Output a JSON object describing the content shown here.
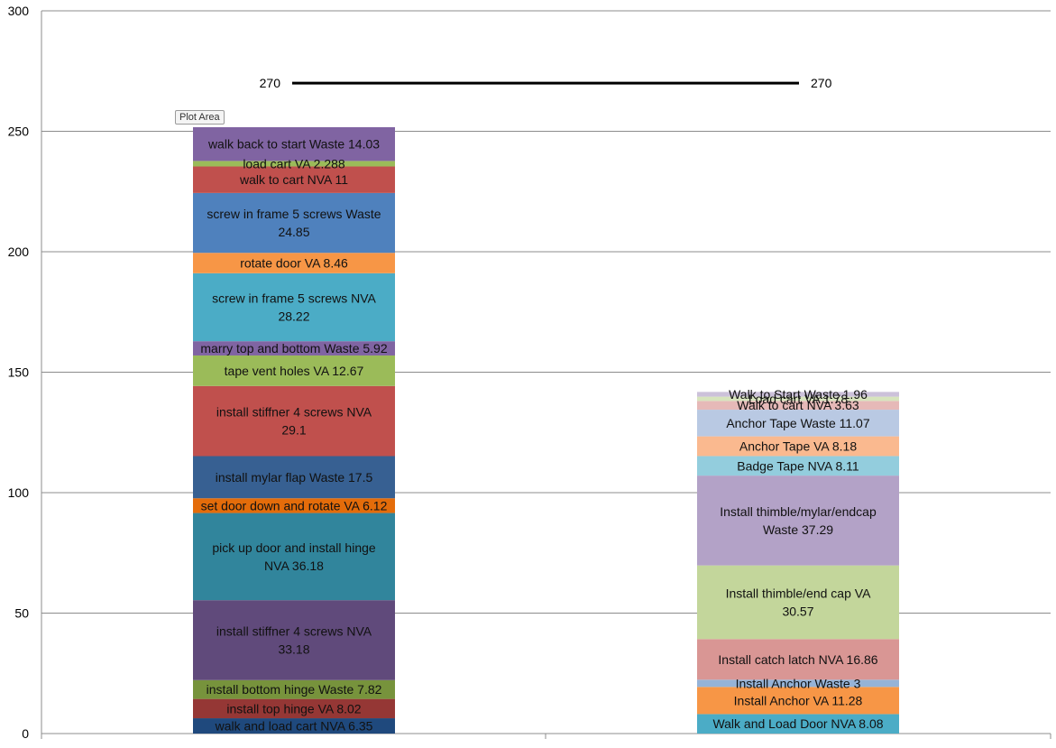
{
  "tooltip": "Plot Area",
  "chart_data": {
    "type": "bar",
    "stacked": true,
    "ylim": [
      0,
      300
    ],
    "yticks": [
      0,
      50,
      100,
      150,
      200,
      250,
      300
    ],
    "grid": true,
    "legend": "none",
    "reference_line": {
      "value": 270,
      "left_label": "270",
      "right_label": "270"
    },
    "colors": {
      "purple": "#8064a2",
      "green": "#9bbb59",
      "red": "#c0504d",
      "blue": "#4f81bd",
      "orange": "#f79646",
      "teal": "#4bacc6",
      "darkpurple": "#604a7b",
      "darkteal": "#31859c",
      "darkred": "#953735",
      "darkblue": "#1f497d",
      "darkgreen": "#77933c",
      "lightpurple": "#b3a2c7",
      "lightgreen": "#c3d69b",
      "lightred": "#d99694",
      "lightblue": "#95b3d7",
      "lightorange": "#fac090",
      "lightteal": "#93cddd",
      "palepurple": "#ccc1da",
      "palegreen": "#d7e4bd",
      "palered": "#e6b9b8"
    },
    "columns": [
      {
        "segments": [
          {
            "label": "walk and load cart NVA 6.35",
            "value": 6.35,
            "color": "#1f497d"
          },
          {
            "label": "install top hinge VA 8.02",
            "value": 8.02,
            "color": "#953735"
          },
          {
            "label": "install bottom hinge Waste 7.82",
            "value": 7.82,
            "color": "#77933c"
          },
          {
            "label": "install stiffner 4 screws NVA 33.18",
            "value": 33.18,
            "color": "#604a7b"
          },
          {
            "label": "pick up door and install hinge NVA 36.18",
            "value": 36.18,
            "color": "#31859c"
          },
          {
            "label": "set door down and rotate VA 6.12",
            "value": 6.12,
            "color": "#e46c0a"
          },
          {
            "label": "install mylar flap Waste 17.5",
            "value": 17.5,
            "color": "#376092"
          },
          {
            "label": "install stiffner 4 screws NVA 29.1",
            "value": 29.1,
            "color": "#c0504d"
          },
          {
            "label": "tape vent holes VA 12.67",
            "value": 12.67,
            "color": "#9bbb59"
          },
          {
            "label": "marry top and bottom Waste 5.92",
            "value": 5.92,
            "color": "#8064a2"
          },
          {
            "label": "screw in frame 5 screws NVA 28.22",
            "value": 28.22,
            "color": "#4bacc6"
          },
          {
            "label": "rotate door VA 8.46",
            "value": 8.46,
            "color": "#f79646"
          },
          {
            "label": "screw in frame 5 screws Waste 24.85",
            "value": 24.85,
            "color": "#4f81bd"
          },
          {
            "label": "walk to cart NVA 11",
            "value": 11,
            "color": "#c0504d"
          },
          {
            "label": "load cart VA 2.288",
            "value": 2.288,
            "color": "#9bbb59"
          },
          {
            "label": "walk back to start Waste 14.03",
            "value": 14.03,
            "color": "#8064a2"
          }
        ]
      },
      {
        "segments": [
          {
            "label": "Walk and Load Door NVA 8.08",
            "value": 8.08,
            "color": "#4bacc6"
          },
          {
            "label": "Install Anchor VA 11.28",
            "value": 11.28,
            "color": "#f79646"
          },
          {
            "label": "Install Anchor Waste 3",
            "value": 3,
            "color": "#95b3d7"
          },
          {
            "label": "Install catch latch NVA 16.86",
            "value": 16.86,
            "color": "#d99694"
          },
          {
            "label": "Install thimble/end cap VA 30.57",
            "value": 30.57,
            "color": "#c3d69b"
          },
          {
            "label": "Install thimble/mylar/endcap Waste 37.29",
            "value": 37.29,
            "color": "#b3a2c7"
          },
          {
            "label": "Badge Tape NVA 8.11",
            "value": 8.11,
            "color": "#93cddd"
          },
          {
            "label": "Anchor Tape VA 8.18",
            "value": 8.18,
            "color": "#fab98f"
          },
          {
            "label": "Anchor Tape Waste 11.07",
            "value": 11.07,
            "color": "#b9c9e3"
          },
          {
            "label": "Walk to cart NVA 3.63",
            "value": 3.63,
            "color": "#e6b9b8"
          },
          {
            "label": "Load cart VA 1.78",
            "value": 1.78,
            "color": "#d7e4bd"
          },
          {
            "label": "Walk to Start Waste 1.96",
            "value": 1.96,
            "color": "#ccc1da"
          }
        ]
      }
    ]
  }
}
